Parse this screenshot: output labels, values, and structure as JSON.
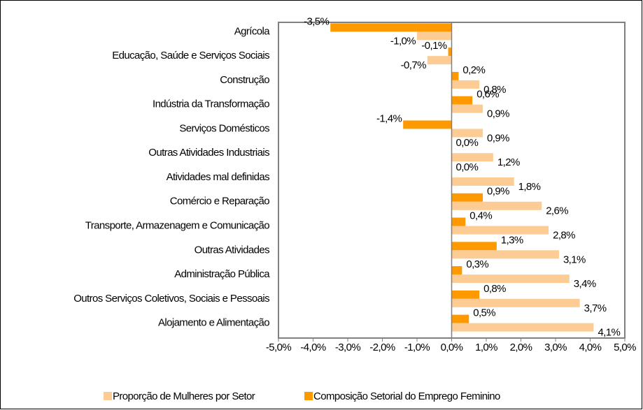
{
  "chart_data": {
    "type": "hbar",
    "categories": [
      "Agrícola",
      "Educação, Saúde e Serviços Sociais",
      "Construção",
      "Indústria da Transformação",
      "Serviços Domésticos",
      "Outras Atividades Industriais",
      "Atividades mal definidas",
      "Comércio e Reparação",
      "Transporte, Armazenagem e Comunicação",
      "Outras Atividades",
      "Administração Pública",
      "Outros Serviços Coletivos, Sociais e Pessoais",
      "Alojamento e Alimentação"
    ],
    "series": [
      {
        "name": "Proporção de Mulheres por Setor",
        "color": "#fdcc94",
        "values": [
          -1.0,
          -0.7,
          0.8,
          0.9,
          0.9,
          1.2,
          1.8,
          2.6,
          2.8,
          3.1,
          3.4,
          3.7,
          4.1
        ],
        "value_labels": [
          "-1,0%",
          "-0,7%",
          "0,8%",
          "0,9%",
          "0,9%",
          "1,2%",
          "1,8%",
          "2,6%",
          "2,8%",
          "3,1%",
          "3,4%",
          "3,7%",
          "4,1%"
        ]
      },
      {
        "name": "Composição Setorial do Emprego Feminino",
        "color": "#ff9900",
        "values": [
          -3.5,
          -0.1,
          0.2,
          0.6,
          -1.4,
          0.0,
          0.0,
          0.9,
          0.4,
          1.3,
          0.3,
          0.8,
          0.5
        ],
        "value_labels": [
          "-3,5%",
          "-0,1%",
          "0,2%",
          "0,6%",
          "-1,4%",
          "0,0%",
          "0,0%",
          "0,9%",
          "0,4%",
          "1,3%",
          "0,3%",
          "0,8%",
          "0,5%"
        ]
      }
    ],
    "xlim": [
      -5,
      5
    ],
    "xticks": [
      {
        "value": -5,
        "label": "-5,0%"
      },
      {
        "value": -4,
        "label": "-4,0%"
      },
      {
        "value": -3,
        "label": "-3,0%"
      },
      {
        "value": -2,
        "label": "-2,0%"
      },
      {
        "value": -1,
        "label": "-1,0%"
      },
      {
        "value": 0,
        "label": "0,0%"
      },
      {
        "value": 1,
        "label": "1,0%"
      },
      {
        "value": 2,
        "label": "2,0%"
      },
      {
        "value": 3,
        "label": "3,0%"
      },
      {
        "value": 4,
        "label": "4,0%"
      },
      {
        "value": 5,
        "label": "5,0%"
      }
    ],
    "grid": false,
    "legend": "bottom"
  }
}
